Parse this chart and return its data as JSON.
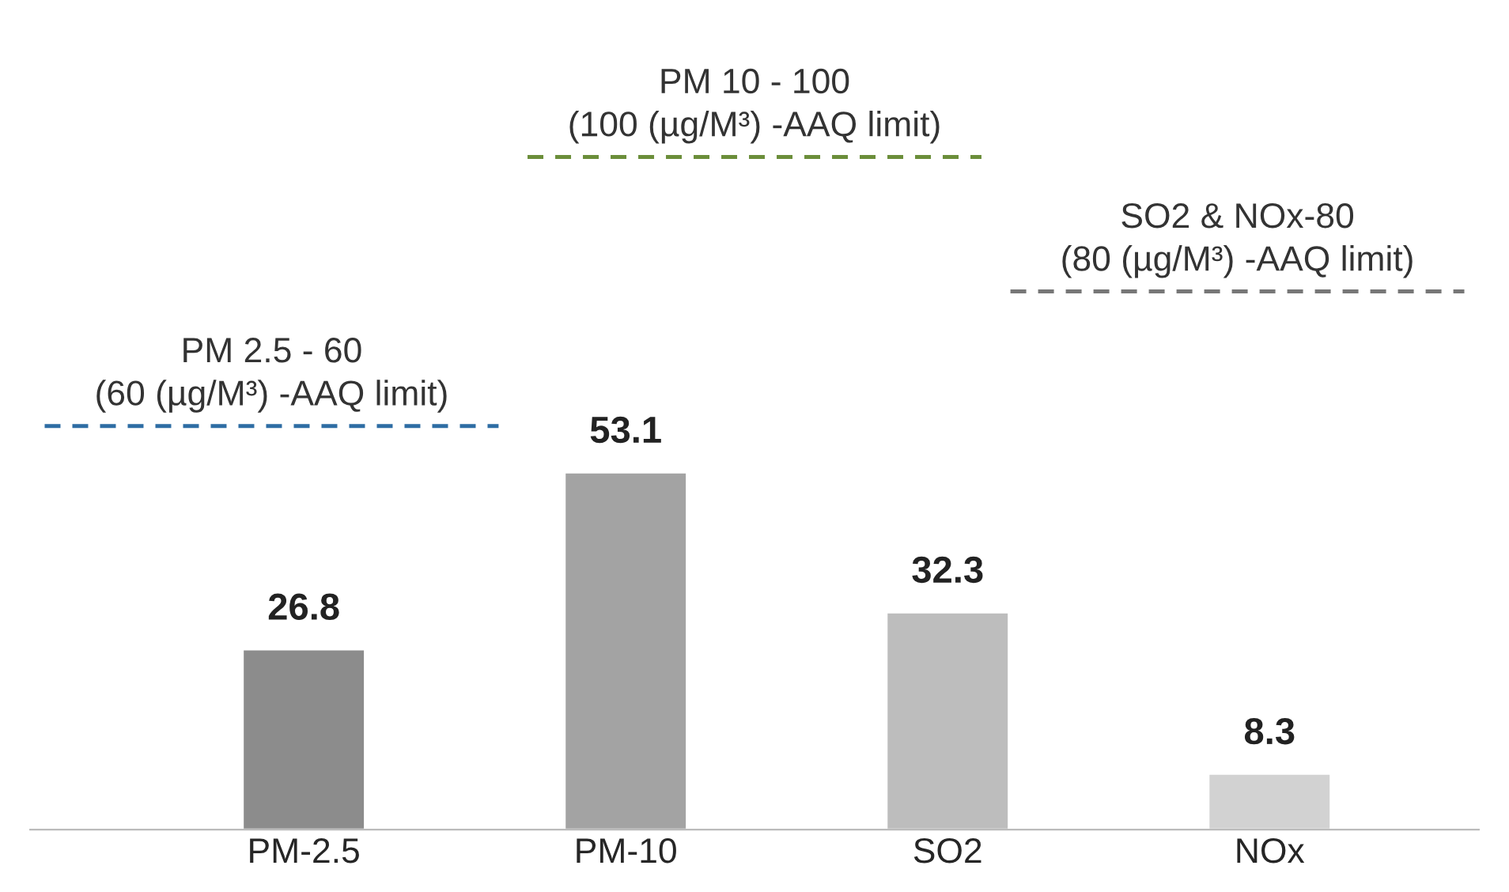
{
  "chart_data": {
    "type": "bar",
    "categories": [
      "PM-2.5",
      "PM-10",
      "SO2",
      "NOx"
    ],
    "values": [
      26.8,
      53.1,
      32.3,
      8.3
    ],
    "colors": [
      "#8c8c8c",
      "#a3a3a3",
      "#bdbdbd",
      "#d2d2d2"
    ],
    "data_labels": true,
    "ref_lines": [
      {
        "axis": "y",
        "value": 60,
        "label": "PM 2.5 - 60\n(60 (µg/M³) -AAQ limit)",
        "color": "#2e6da4",
        "line_style": "dashed"
      },
      {
        "axis": "y",
        "value": 100,
        "label": "PM 10 - 100\n(100 (µg/M³) -AAQ limit)",
        "color": "#6b8e3a",
        "line_style": "dashed"
      },
      {
        "axis": "y",
        "value": 80,
        "label": "SO2 & NOx-80\n(80 (µg/M³) -AAQ limit)",
        "color": "#777777",
        "line_style": "dashed"
      }
    ],
    "grid": false,
    "legend": false
  }
}
